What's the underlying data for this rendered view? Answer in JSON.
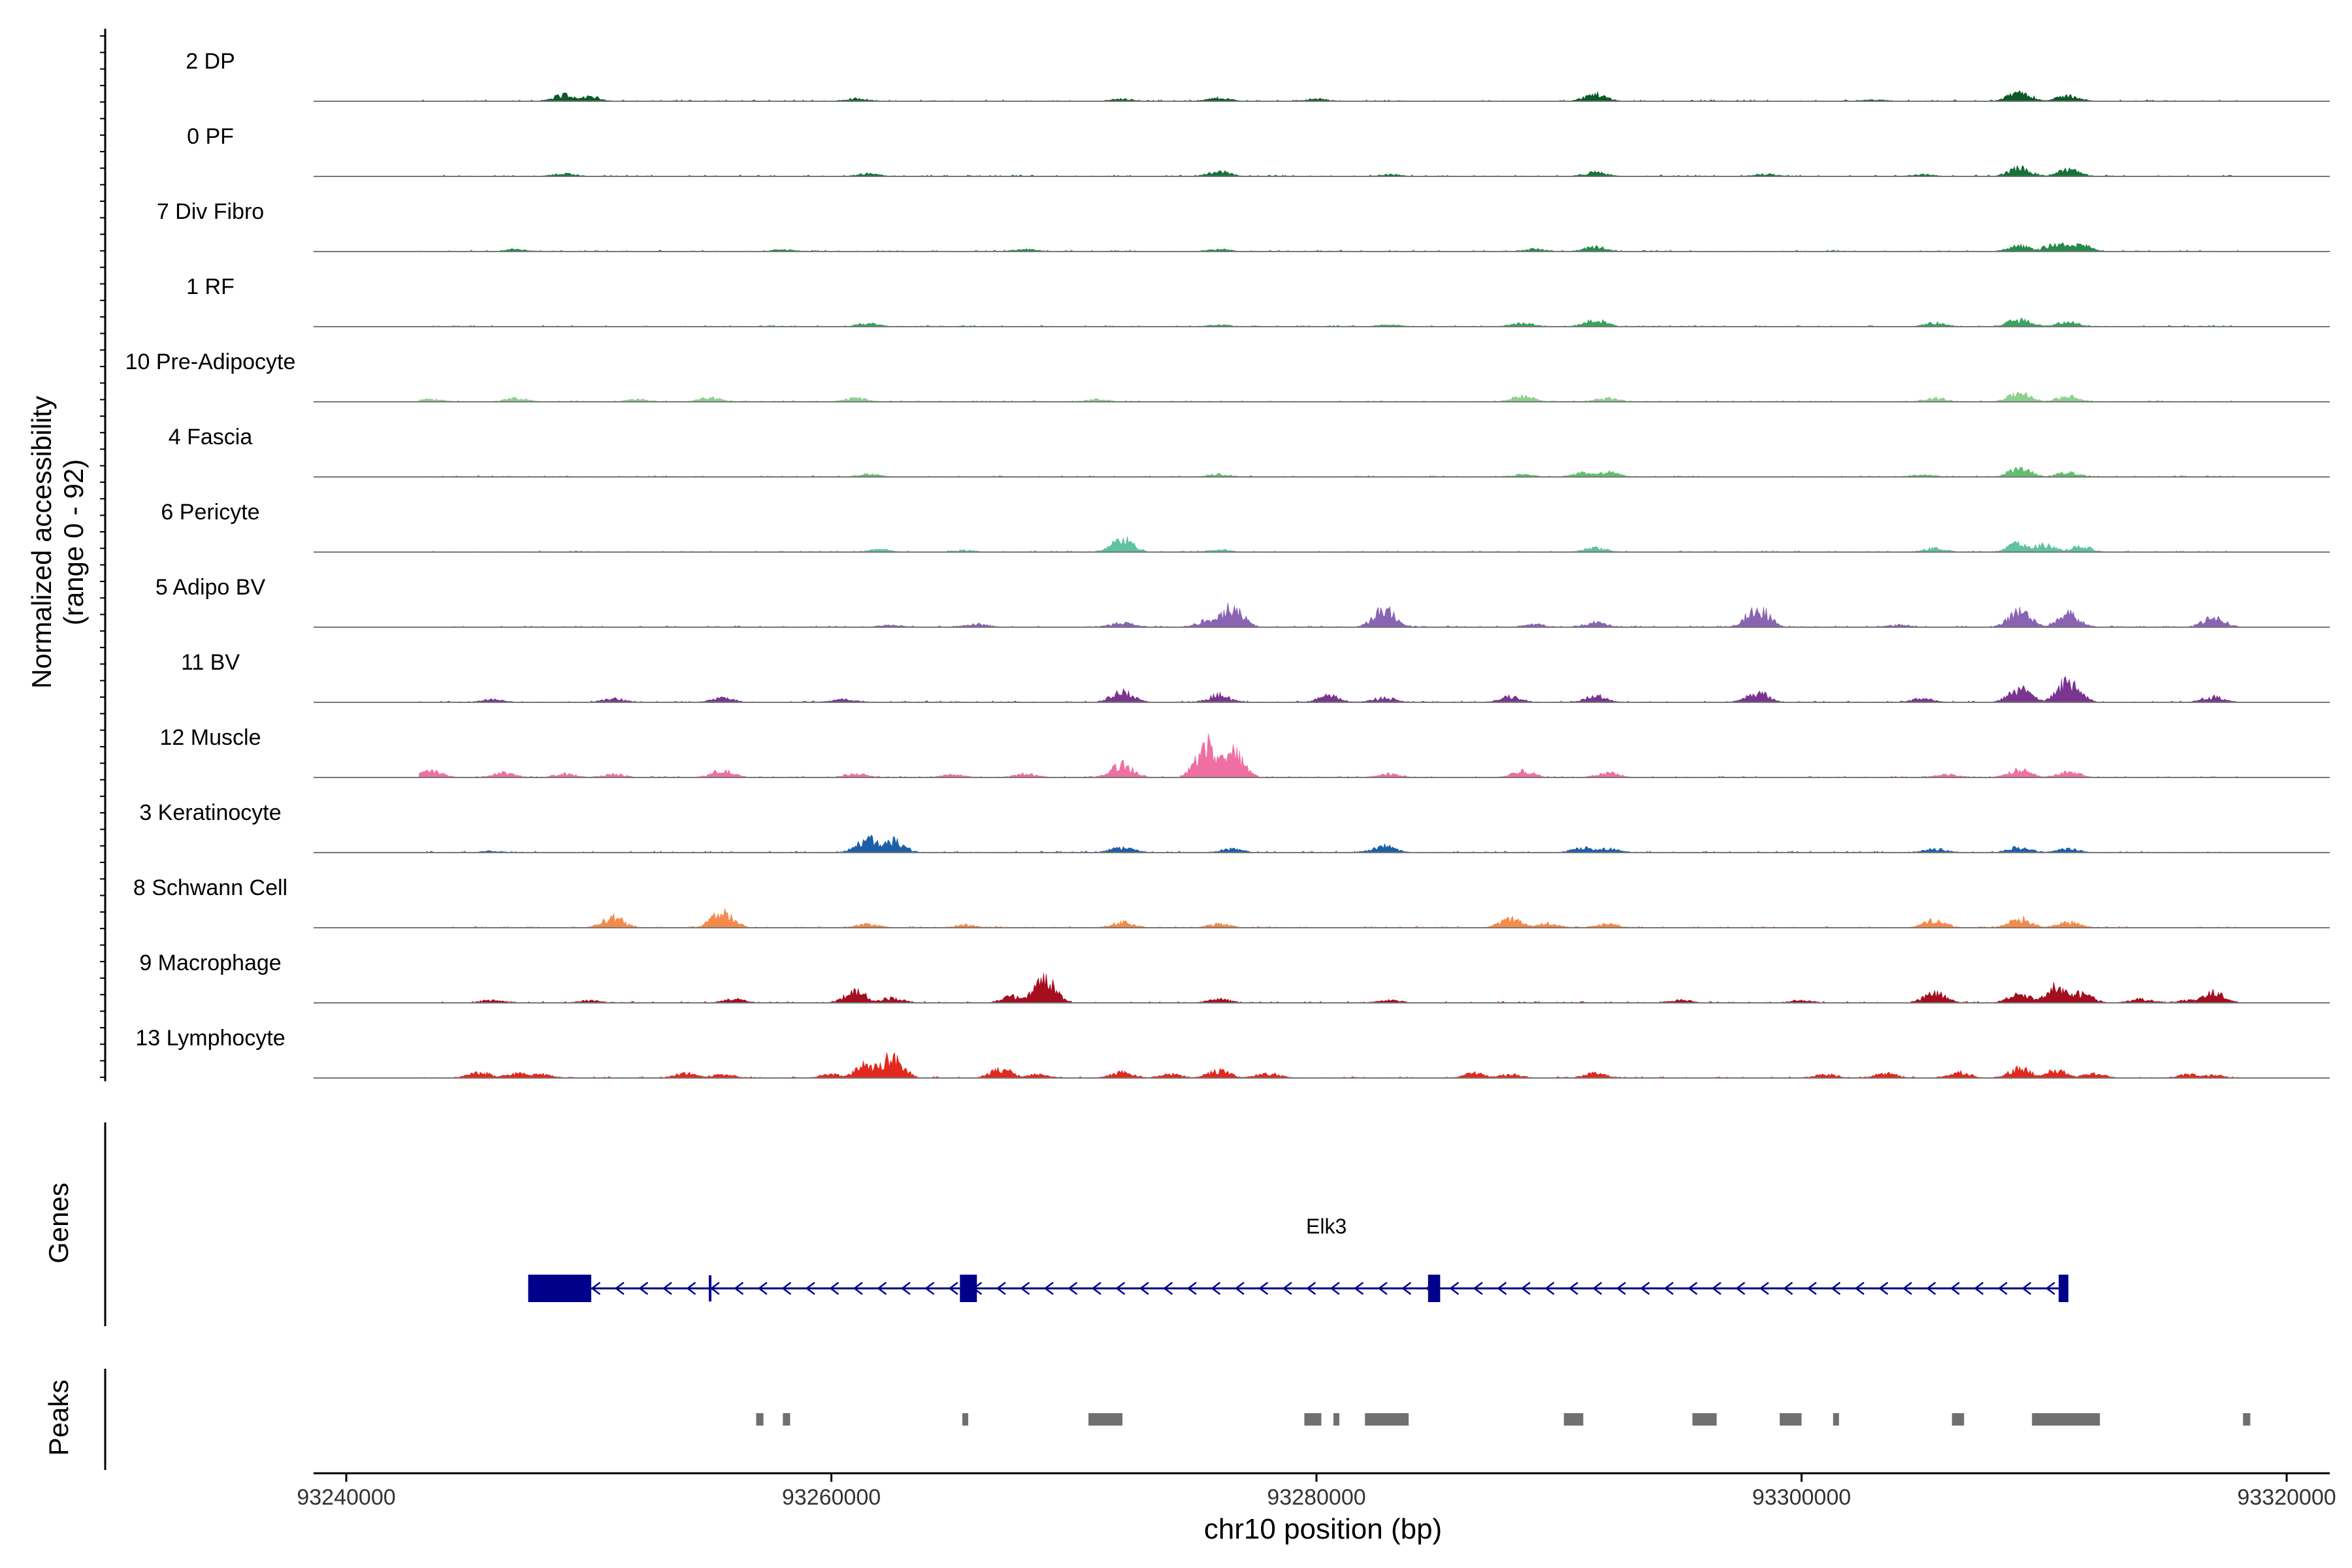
{
  "chart_data": {
    "type": "area",
    "title": "",
    "xlabel": "chr10 position (bp)",
    "ylabel_line1": "Normalized accessibility",
    "ylabel_line2": "(range 0 - 92)",
    "y_range": [
      0,
      92
    ],
    "x_range": [
      93237000,
      93321000
    ],
    "x_ticks": [
      93240000,
      93260000,
      93280000,
      93300000,
      93320000
    ],
    "x_tick_labels": [
      "93240000",
      "93260000",
      "93280000",
      "93300000",
      "93320000"
    ],
    "track_start": 93243000,
    "track_end": 93318000,
    "tracks": [
      {
        "name": "2 DP",
        "color": "#0b5a27",
        "peaks": [
          [
            93249000,
            14
          ],
          [
            93250000,
            10
          ],
          [
            93261000,
            6
          ],
          [
            93272000,
            5
          ],
          [
            93276000,
            7
          ],
          [
            93280000,
            5
          ],
          [
            93291500,
            15
          ],
          [
            93303000,
            3
          ],
          [
            93309000,
            20
          ],
          [
            93311000,
            12
          ]
        ]
      },
      {
        "name": "0 PF",
        "color": "#17713a",
        "peaks": [
          [
            93249000,
            6
          ],
          [
            93261500,
            6
          ],
          [
            93276000,
            10
          ],
          [
            93283000,
            4
          ],
          [
            93291500,
            9
          ],
          [
            93298500,
            5
          ],
          [
            93305000,
            4
          ],
          [
            93309000,
            18
          ],
          [
            93311000,
            14
          ]
        ]
      },
      {
        "name": "7 Div Fibro",
        "color": "#248c4a",
        "peaks": [
          [
            93247000,
            5
          ],
          [
            93258000,
            4
          ],
          [
            93268000,
            5
          ],
          [
            93276000,
            5
          ],
          [
            93289000,
            5
          ],
          [
            93291500,
            10
          ],
          [
            93309000,
            12
          ],
          [
            93310500,
            18
          ],
          [
            93311500,
            14
          ]
        ]
      },
      {
        "name": "1 RF",
        "color": "#3aa35d",
        "peaks": [
          [
            93261500,
            7
          ],
          [
            93276000,
            4
          ],
          [
            93283000,
            4
          ],
          [
            93288500,
            8
          ],
          [
            93291500,
            14
          ],
          [
            93305500,
            8
          ],
          [
            93309000,
            16
          ],
          [
            93311000,
            10
          ]
        ]
      },
      {
        "name": "10 Pre-Adipocyte",
        "color": "#8fd08f",
        "peaks": [
          [
            93243500,
            6
          ],
          [
            93247000,
            8
          ],
          [
            93252000,
            5
          ],
          [
            93255000,
            9
          ],
          [
            93261000,
            8
          ],
          [
            93271000,
            5
          ],
          [
            93288500,
            12
          ],
          [
            93292000,
            8
          ],
          [
            93305500,
            8
          ],
          [
            93309000,
            18
          ],
          [
            93311000,
            12
          ]
        ]
      },
      {
        "name": "4 Fascia",
        "color": "#62bf6f",
        "peaks": [
          [
            93261500,
            6
          ],
          [
            93276000,
            6
          ],
          [
            93288500,
            5
          ],
          [
            93291000,
            9
          ],
          [
            93292000,
            10
          ],
          [
            93305000,
            5
          ],
          [
            93309000,
            18
          ],
          [
            93311000,
            10
          ]
        ]
      },
      {
        "name": "6 Pericyte",
        "color": "#5fc2a3",
        "peaks": [
          [
            93262000,
            6
          ],
          [
            93265500,
            4
          ],
          [
            93272000,
            28
          ],
          [
            93276000,
            5
          ],
          [
            93291500,
            9
          ],
          [
            93305500,
            8
          ],
          [
            93309000,
            20
          ],
          [
            93310000,
            16
          ],
          [
            93311500,
            12
          ]
        ]
      },
      {
        "name": "5 Adipo BV",
        "color": "#8a64b3",
        "peaks": [
          [
            93262500,
            5
          ],
          [
            93266000,
            7
          ],
          [
            93272000,
            10
          ],
          [
            93275500,
            14
          ],
          [
            93276500,
            42
          ],
          [
            93282800,
            40
          ],
          [
            93289000,
            6
          ],
          [
            93291500,
            10
          ],
          [
            93298200,
            42
          ],
          [
            93304000,
            5
          ],
          [
            93309000,
            35
          ],
          [
            93311000,
            28
          ],
          [
            93317000,
            20
          ]
        ]
      },
      {
        "name": "11 BV",
        "color": "#7a3590",
        "peaks": [
          [
            93246000,
            6
          ],
          [
            93251000,
            8
          ],
          [
            93255500,
            9
          ],
          [
            93260500,
            7
          ],
          [
            93272000,
            22
          ],
          [
            93276000,
            16
          ],
          [
            93280500,
            14
          ],
          [
            93282800,
            10
          ],
          [
            93288000,
            12
          ],
          [
            93291500,
            14
          ],
          [
            93298200,
            20
          ],
          [
            93305000,
            8
          ],
          [
            93309000,
            28
          ],
          [
            93311000,
            45
          ],
          [
            93317000,
            12
          ]
        ]
      },
      {
        "name": "12 Muscle",
        "color": "#ef6fa2",
        "peaks": [
          [
            93243500,
            14
          ],
          [
            93246500,
            10
          ],
          [
            93249000,
            8
          ],
          [
            93251000,
            7
          ],
          [
            93255500,
            14
          ],
          [
            93261000,
            8
          ],
          [
            93265000,
            6
          ],
          [
            93268000,
            8
          ],
          [
            93272000,
            28
          ],
          [
            93275500,
            70
          ],
          [
            93276500,
            60
          ],
          [
            93283000,
            8
          ],
          [
            93288500,
            14
          ],
          [
            93292000,
            10
          ],
          [
            93306000,
            6
          ],
          [
            93309000,
            16
          ],
          [
            93311000,
            14
          ]
        ]
      },
      {
        "name": "3 Keratinocyte",
        "color": "#1d5ea7",
        "peaks": [
          [
            93246000,
            3
          ],
          [
            93261500,
            30
          ],
          [
            93262500,
            26
          ],
          [
            93272000,
            12
          ],
          [
            93276500,
            8
          ],
          [
            93282800,
            14
          ],
          [
            93291000,
            10
          ],
          [
            93292000,
            8
          ],
          [
            93305500,
            8
          ],
          [
            93309000,
            12
          ],
          [
            93311000,
            8
          ]
        ]
      },
      {
        "name": "8 Schwann Cell",
        "color": "#f58b4b",
        "peaks": [
          [
            93251000,
            22
          ],
          [
            93255500,
            32
          ],
          [
            93261500,
            8
          ],
          [
            93265500,
            6
          ],
          [
            93272000,
            12
          ],
          [
            93276000,
            8
          ],
          [
            93288000,
            18
          ],
          [
            93289500,
            10
          ],
          [
            93292000,
            8
          ],
          [
            93305500,
            16
          ],
          [
            93309000,
            20
          ],
          [
            93311000,
            12
          ]
        ]
      },
      {
        "name": "9 Macrophage",
        "color": "#a30f1f",
        "peaks": [
          [
            93246000,
            6
          ],
          [
            93250000,
            5
          ],
          [
            93256000,
            8
          ],
          [
            93261000,
            24
          ],
          [
            93262500,
            10
          ],
          [
            93267500,
            14
          ],
          [
            93268800,
            50
          ],
          [
            93276000,
            8
          ],
          [
            93283000,
            6
          ],
          [
            93295000,
            6
          ],
          [
            93300000,
            6
          ],
          [
            93305500,
            20
          ],
          [
            93309000,
            18
          ],
          [
            93310500,
            35
          ],
          [
            93311500,
            20
          ],
          [
            93314000,
            8
          ],
          [
            93316000,
            6
          ],
          [
            93317000,
            22
          ]
        ]
      },
      {
        "name": "13 Lymphocyte",
        "color": "#e3281f",
        "peaks": [
          [
            93245500,
            12
          ],
          [
            93247000,
            10
          ],
          [
            93248000,
            8
          ],
          [
            93254000,
            10
          ],
          [
            93255500,
            8
          ],
          [
            93260000,
            8
          ],
          [
            93261500,
            30
          ],
          [
            93262500,
            45
          ],
          [
            93267000,
            18
          ],
          [
            93268500,
            8
          ],
          [
            93272000,
            12
          ],
          [
            93274000,
            8
          ],
          [
            93276000,
            16
          ],
          [
            93278000,
            10
          ],
          [
            93286500,
            10
          ],
          [
            93288000,
            8
          ],
          [
            93291500,
            10
          ],
          [
            93301000,
            8
          ],
          [
            93303500,
            10
          ],
          [
            93306500,
            12
          ],
          [
            93309000,
            20
          ],
          [
            93310500,
            16
          ],
          [
            93312000,
            10
          ],
          [
            93316000,
            8
          ],
          [
            93317000,
            6
          ]
        ]
      }
    ],
    "genes": [
      {
        "name": "Elk3",
        "strand": "-",
        "start": 93247500,
        "end": 93311000,
        "color": "#00008b",
        "exons": [
          [
            93247500,
            93250100
          ],
          [
            93265300,
            93266000
          ],
          [
            93284600,
            93285100
          ],
          [
            93310600,
            93311000
          ]
        ],
        "tss_tick": 93255000
      }
    ],
    "genes_label": "Genes",
    "peaks_label": "Peaks",
    "peak_color": "#707070",
    "peak_regions": [
      [
        93256900,
        93257200
      ],
      [
        93258000,
        93258300
      ],
      [
        93265400,
        93265500
      ],
      [
        93270600,
        93272000
      ],
      [
        93279500,
        93280200
      ],
      [
        93280700,
        93280900
      ],
      [
        93282000,
        93283800
      ],
      [
        93290200,
        93291000
      ],
      [
        93295500,
        93296500
      ],
      [
        93299100,
        93300000
      ],
      [
        93301300,
        93301500
      ],
      [
        93306200,
        93306700
      ],
      [
        93309500,
        93312300
      ],
      [
        93318200,
        93318500
      ]
    ]
  }
}
